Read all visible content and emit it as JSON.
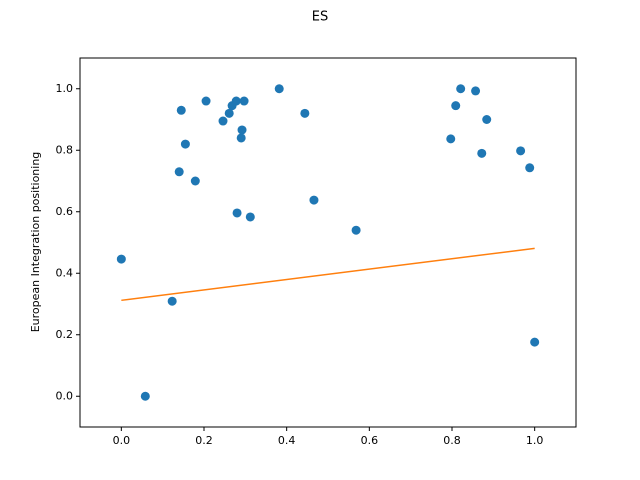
{
  "chart_data": {
    "type": "scatter",
    "title": "ES",
    "y_label": "European Integration positioning",
    "x": [
      0,
      0.058,
      0.123,
      0.14,
      0.145,
      0.155,
      0.179,
      0.205,
      0.246,
      0.261,
      0.268,
      0.278,
      0.28,
      0.29,
      0.292,
      0.297,
      0.312,
      0.382,
      0.444,
      0.466,
      0.568,
      0.797,
      0.809,
      0.821,
      0.857,
      0.872,
      0.884,
      0.966,
      0.988,
      1.0
    ],
    "y": [
      0.446,
      0,
      0.309,
      0.73,
      0.93,
      0.82,
      0.7,
      0.96,
      0.895,
      0.92,
      0.945,
      0.96,
      0.596,
      0.84,
      0.866,
      0.96,
      0.583,
      1.0,
      0.92,
      0.638,
      0.54,
      0.837,
      0.945,
      1.0,
      0.993,
      0.79,
      0.9,
      0.798,
      0.743,
      0.176
    ],
    "color": "#1f77b4",
    "fit_line": {
      "x": [
        0,
        1
      ],
      "y": [
        0.312,
        0.481
      ],
      "color": "#ff7f0e"
    },
    "xlim": [
      -0.1,
      1.1
    ],
    "ylim": [
      -0.1,
      1.1
    ],
    "xticks": [
      {
        "value": 0,
        "label": "0.0"
      },
      0.2,
      0.4,
      0.6,
      0.8,
      {
        "value": 1,
        "label": "1.0"
      }
    ],
    "yticks": [
      {
        "value": 0,
        "label": "0.0"
      },
      0.2,
      0.4,
      0.6,
      0.8,
      {
        "value": 1,
        "label": "1.0"
      }
    ]
  }
}
